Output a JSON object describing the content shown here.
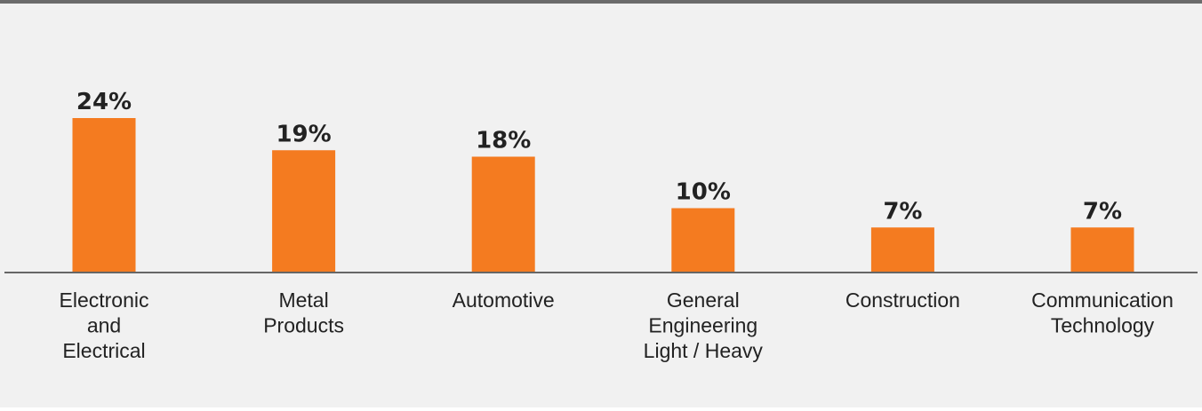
{
  "chart_data": {
    "type": "bar",
    "categories": [
      [
        "Electronic",
        "and",
        "Electrical"
      ],
      [
        "Metal",
        "Products"
      ],
      [
        "Automotive"
      ],
      [
        "General",
        "Engineering",
        "Light / Heavy"
      ],
      [
        "Construction"
      ],
      [
        "Communication",
        "Technology"
      ]
    ],
    "values": [
      24,
      19,
      18,
      10,
      7,
      7
    ],
    "value_labels": [
      "24%",
      "19%",
      "18%",
      "10%",
      "7%",
      "7%"
    ],
    "unit": "%",
    "ylim": [
      0,
      24
    ],
    "grid": false,
    "legend": "none",
    "colors": {
      "bar": "#f47b20",
      "baseline": "#666666",
      "background": "#f1f1f1",
      "text": "#222222",
      "top_border": "#6b6b6b"
    }
  }
}
